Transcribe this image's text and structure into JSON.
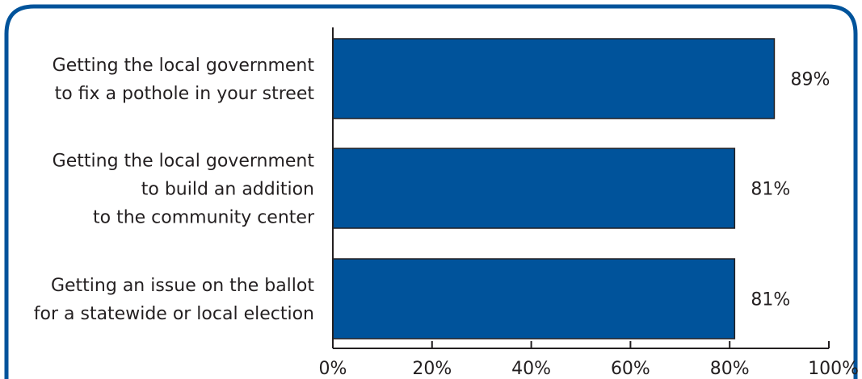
{
  "chart_data": {
    "type": "bar",
    "orientation": "horizontal",
    "categories": [
      [
        "Getting the local government",
        "to fix a pothole in your street"
      ],
      [
        "Getting the local government",
        "to build an addition",
        "to the community center"
      ],
      [
        "Getting an issue on the ballot",
        "for a statewide or local election"
      ]
    ],
    "values": [
      89,
      81,
      81
    ],
    "value_labels": [
      "89%",
      "81%",
      "81%"
    ],
    "xlim": [
      0,
      100
    ],
    "x_ticks": [
      0,
      20,
      40,
      60,
      80,
      100
    ],
    "x_tick_labels": [
      "0%",
      "20%",
      "40%",
      "60%",
      "80%",
      "100%"
    ],
    "title": "",
    "xlabel": "",
    "ylabel": "",
    "grid": false,
    "colors": {
      "bar": "#00539b",
      "bar_edge": "#231f20",
      "frame": "#00539b",
      "text": "#231f20"
    }
  }
}
